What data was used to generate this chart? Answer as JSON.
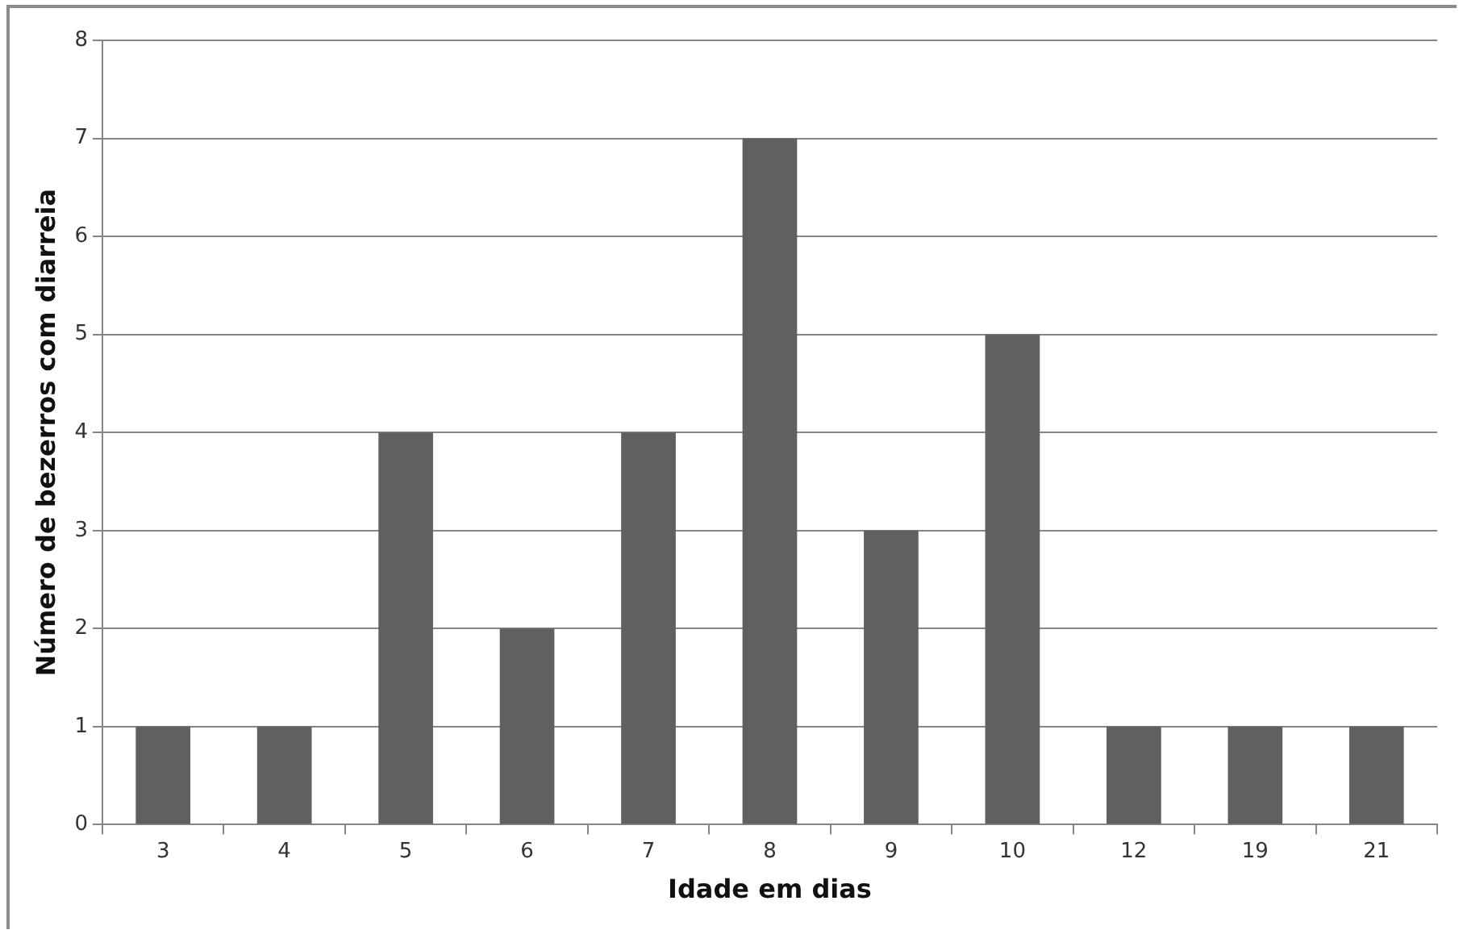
{
  "chart_data": {
    "type": "bar",
    "xlabel": "Idade em dias",
    "ylabel": "Número de bezerros com diarreia",
    "categories": [
      "3",
      "4",
      "5",
      "6",
      "7",
      "8",
      "9",
      "10",
      "12",
      "19",
      "21"
    ],
    "values": [
      1,
      1,
      4,
      2,
      4,
      7,
      3,
      5,
      1,
      1,
      1
    ],
    "color": "#606060",
    "ylim": [
      0,
      8
    ],
    "yticks": [
      0,
      1,
      2,
      3,
      4,
      5,
      6,
      7,
      8
    ],
    "grid": "y"
  }
}
